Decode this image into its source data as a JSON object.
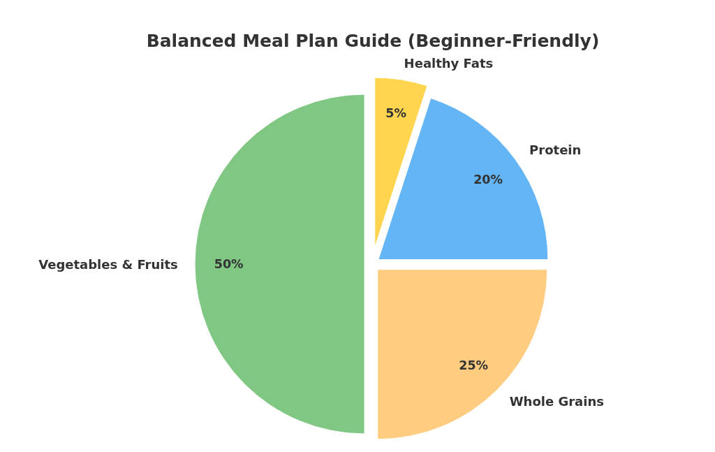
{
  "chart_data": {
    "type": "pie",
    "title": "Balanced Meal Plan Guide (Beginner-Friendly)",
    "categories": [
      "Vegetables & Fruits",
      "Whole Grains",
      "Protein",
      "Healthy Fats"
    ],
    "values": [
      50,
      25,
      20,
      5
    ],
    "colors": [
      "#81c784",
      "#ffcc80",
      "#64b5f6",
      "#ffd54f"
    ],
    "value_labels": [
      "50%",
      "25%",
      "20%",
      "5%"
    ]
  }
}
